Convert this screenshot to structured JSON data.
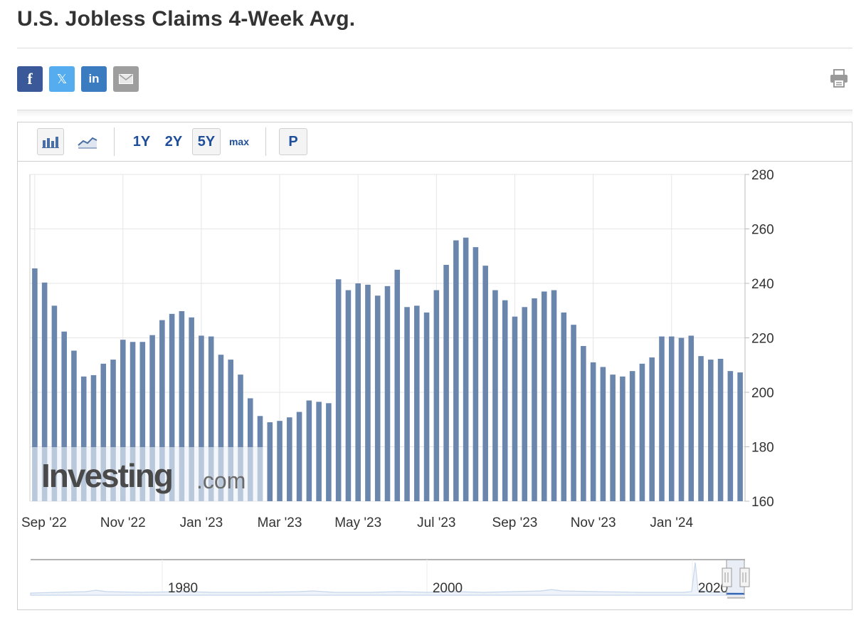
{
  "page": {
    "title": "U.S. Jobless Claims 4-Week Avg."
  },
  "share": {
    "facebook_label": "f",
    "twitter_label": "𝕏",
    "linkedin_label": "in"
  },
  "icons": {
    "facebook": "facebook-icon",
    "twitter": "x-twitter-icon",
    "linkedin": "linkedin-icon",
    "email": "email-icon",
    "print": "print-icon",
    "bar_chart": "bar-chart-icon",
    "area_chart": "area-chart-icon"
  },
  "toolbar": {
    "ranges": [
      "1Y",
      "2Y",
      "5Y",
      "max"
    ],
    "selected_range": "5Y",
    "p_label": "P"
  },
  "colors": {
    "bar": "#6a86ad",
    "accent": "#1f4e9a"
  },
  "watermark": {
    "brand": "Investing",
    "suffix": ".com"
  },
  "chart_data": {
    "type": "bar",
    "ylim": [
      160,
      280
    ],
    "y_ticks": [
      "280",
      "260",
      "240",
      "220",
      "200",
      "180",
      "160"
    ],
    "x_tick_labels": [
      "Sep '22",
      "Nov '22",
      "Jan '23",
      "Mar '23",
      "May '23",
      "Jul '23",
      "Sep '23",
      "Nov '23",
      "Jan '24"
    ],
    "x_tick_index": [
      0,
      9,
      17,
      25,
      33,
      41,
      49,
      57,
      65
    ],
    "grid": true,
    "series": [
      {
        "values": [
          245.5,
          240.3,
          231.8,
          222.3,
          215.3,
          205.8,
          206.3,
          210.5,
          212.0,
          219.3,
          218.5,
          218.5,
          221.0,
          226.5,
          228.8,
          229.8,
          227.5,
          220.8,
          220.5,
          213.8,
          212.0,
          206.5,
          197.8,
          191.3,
          189.0,
          189.5,
          190.8,
          192.8,
          197.0,
          196.5,
          196.0,
          241.5,
          237.5,
          240.0,
          239.5,
          235.5,
          239.0,
          245.0,
          231.3,
          231.8,
          229.3,
          237.5,
          246.8,
          255.8,
          256.8,
          253.3,
          246.5,
          237.5,
          233.8,
          227.8,
          231.3,
          234.5,
          237.0,
          237.5,
          229.3,
          224.8,
          217.0,
          211.0,
          209.3,
          206.5,
          205.8,
          207.8,
          210.5,
          212.8,
          220.5,
          220.5,
          220.0,
          220.8,
          213.3,
          212.0,
          212.3,
          207.8,
          207.3
        ]
      }
    ]
  },
  "navigator": {
    "labels": [
      "1980",
      "2000",
      "2020"
    ]
  }
}
